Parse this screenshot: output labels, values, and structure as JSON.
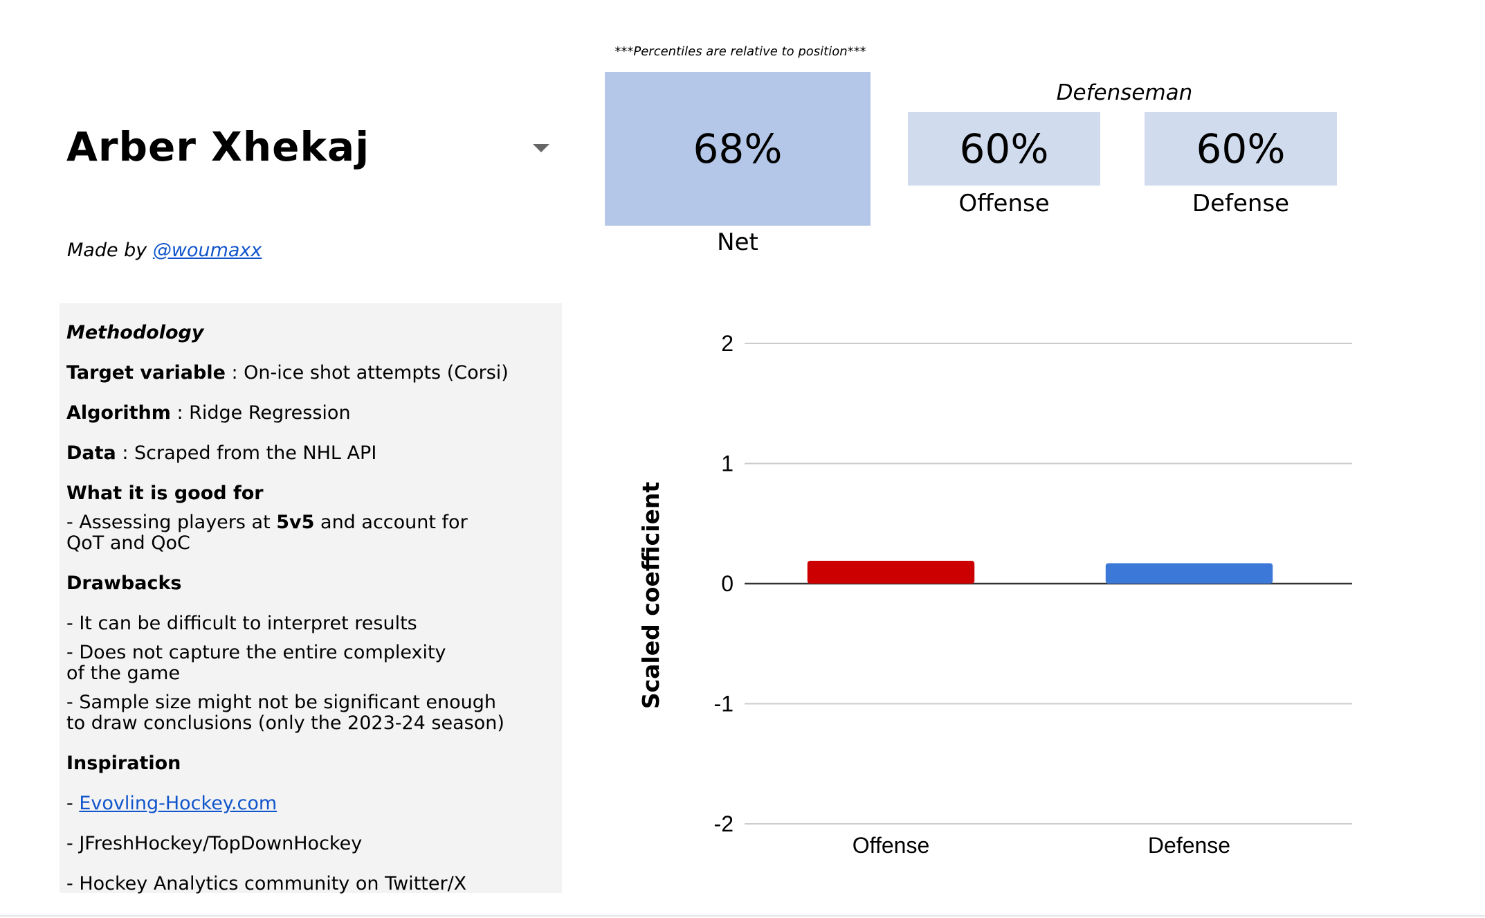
{
  "player": {
    "name": "Arber Xhekaj",
    "made_by_prefix": "Made by ",
    "made_by_handle": "@woumaxx"
  },
  "percentiles": {
    "note": "***Percentiles are relative to position***",
    "position": "Defenseman",
    "net_value": "68%",
    "net_label": "Net",
    "offense_value": "60%",
    "offense_label": "Offense",
    "defense_value": "60%",
    "defense_label": "Defense"
  },
  "methodology": {
    "title": "Methodology",
    "target_label": "Target variable",
    "target_value": " : On-ice shot attempts (Corsi)",
    "algorithm_label": "Algorithm",
    "algorithm_value": " : Ridge Regression",
    "data_label": "Data",
    "data_value": " : Scraped from the NHL API",
    "good_for_title": "What it is good for",
    "good_for_1a": "- Assessing players at ",
    "good_for_1b": "5v5",
    "good_for_1c": " and account for",
    "good_for_2": "QoT and QoC",
    "drawbacks_title": "Drawbacks",
    "drawback_1": "- It can be difficult to interpret results",
    "drawback_2a": "- Does not capture the entire complexity",
    "drawback_2b": "of the game",
    "drawback_3a": "- Sample size might not be significant enough",
    "drawback_3b": "to draw conclusions (only the 2023-24 season)",
    "inspiration_title": "Inspiration",
    "insp_1_prefix": "- ",
    "insp_1_link": "Evovling-Hockey.com",
    "insp_2": "- JFreshHockey/TopDownHockey",
    "insp_3": "- Hockey Analytics community on Twitter/X"
  },
  "colors": {
    "offense_bar": "#cc0000",
    "defense_bar": "#3c78d8",
    "grid": "#cccccc",
    "zero_line": "#333333"
  },
  "chart_data": {
    "type": "bar",
    "title": "",
    "xlabel": "",
    "ylabel": "Scaled coefficient",
    "categories": [
      "Offense",
      "Defense"
    ],
    "values": [
      0.19,
      0.17
    ],
    "ylim": [
      -2,
      2
    ],
    "yticks": [
      2,
      1,
      0,
      -1,
      -2
    ],
    "grid": true,
    "legend": "none"
  }
}
